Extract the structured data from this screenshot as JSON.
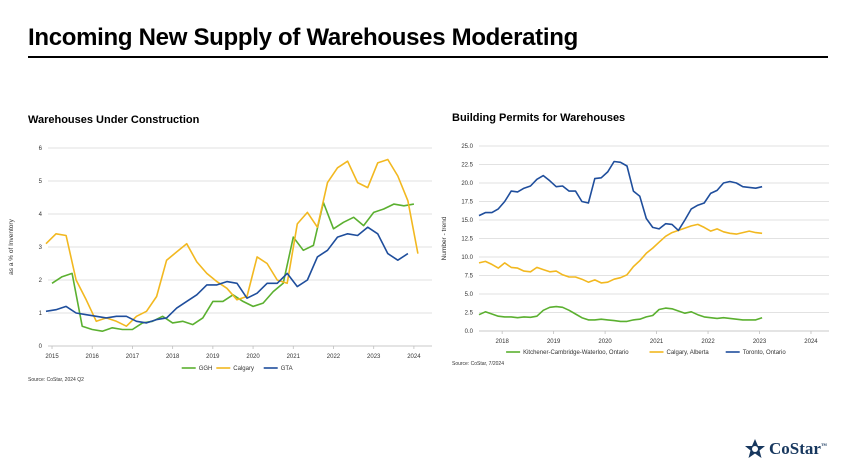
{
  "title": "Incoming New Supply of Warehouses Moderating",
  "colors": {
    "green": "#5bb030",
    "yellow": "#f2b820",
    "blue": "#1f4e9c",
    "grid": "#d9d9d9",
    "brand": "#17375e"
  },
  "logo": {
    "text": "CoStar",
    "tm": "™"
  },
  "chart_data": [
    {
      "type": "line",
      "title": "Warehouses Under Construction",
      "ylabel": "as a % of Inventory",
      "xlabel": "",
      "ylim": [
        0,
        6
      ],
      "yticks": [
        "0",
        "1",
        "2",
        "3",
        "4",
        "5",
        "6"
      ],
      "xlim": [
        2014.9,
        2024.45
      ],
      "xticks": [
        {
          "label": "2015",
          "x": 2015
        },
        {
          "label": "2016",
          "x": 2016
        },
        {
          "label": "2017",
          "x": 2017
        },
        {
          "label": "2018",
          "x": 2018
        },
        {
          "label": "2019",
          "x": 2019
        },
        {
          "label": "2020",
          "x": 2020
        },
        {
          "label": "2021",
          "x": 2021
        },
        {
          "label": "2022",
          "x": 2022
        },
        {
          "label": "2023",
          "x": 2023
        },
        {
          "label": "2024",
          "x": 2024
        }
      ],
      "grid": "horizontal",
      "legend": "bottom",
      "source": "Source: CoStar, 2024 Q2",
      "series": [
        {
          "name": "GGH",
          "color": "#5bb030",
          "x_start": 2015,
          "step": 0.25,
          "values": [
            1.9,
            2.1,
            2.2,
            0.6,
            0.5,
            0.45,
            0.55,
            0.5,
            0.5,
            0.7,
            0.75,
            0.9,
            0.7,
            0.75,
            0.65,
            0.85,
            1.35,
            1.35,
            1.55,
            1.35,
            1.2,
            1.3,
            1.65,
            1.9,
            3.3,
            2.9,
            3.05,
            4.35,
            3.55,
            3.75,
            3.9,
            3.65,
            4.05,
            4.15,
            4.3,
            4.25,
            4.3
          ]
        },
        {
          "name": "Calgary",
          "color": "#f2b820",
          "x_start": 2014.85,
          "step": 0.25,
          "values": [
            3.1,
            3.4,
            3.35,
            2.0,
            1.4,
            0.75,
            0.85,
            0.75,
            0.6,
            0.9,
            1.05,
            1.5,
            2.6,
            2.85,
            3.1,
            2.55,
            2.2,
            1.95,
            1.75,
            1.4,
            1.5,
            2.7,
            2.5,
            2.0,
            1.9,
            3.7,
            4.05,
            3.6,
            4.95,
            5.4,
            5.6,
            4.95,
            4.8,
            5.55,
            5.65,
            5.15,
            4.4,
            2.8
          ]
        },
        {
          "name": "GTA",
          "color": "#1f4e9c",
          "x_start": 2014.85,
          "step": 0.25,
          "values": [
            1.05,
            1.1,
            1.2,
            1.0,
            0.95,
            0.9,
            0.85,
            0.9,
            0.9,
            0.75,
            0.7,
            0.8,
            0.85,
            1.15,
            1.35,
            1.55,
            1.85,
            1.85,
            1.95,
            1.9,
            1.45,
            1.6,
            1.9,
            1.9,
            2.2,
            1.8,
            2.0,
            2.7,
            2.9,
            3.3,
            3.4,
            3.35,
            3.6,
            3.4,
            2.8,
            2.6,
            2.8
          ]
        }
      ]
    },
    {
      "type": "line",
      "title": "Building Permits for Warehouses",
      "ylabel": "Number - trend",
      "xlabel": "",
      "ylim": [
        0,
        25
      ],
      "yticks": [
        "0.0",
        "2.5",
        "5.0",
        "7.5",
        "10.0",
        "12.5",
        "15.0",
        "17.5",
        "20.0",
        "22.5",
        "25.0"
      ],
      "xlim": [
        2017.55,
        2024.35
      ],
      "xticks": [
        {
          "label": "2018",
          "x": 2018
        },
        {
          "label": "2019",
          "x": 2019
        },
        {
          "label": "2020",
          "x": 2020
        },
        {
          "label": "2021",
          "x": 2021
        },
        {
          "label": "2022",
          "x": 2022
        },
        {
          "label": "2023",
          "x": 2023
        },
        {
          "label": "2024",
          "x": 2024
        }
      ],
      "grid": "horizontal",
      "legend": "bottom",
      "source": "Source: CoStar, 7/2024",
      "series": [
        {
          "name": "Kitchener-Cambridge-Waterloo, Ontario",
          "color": "#5bb030",
          "x_start": 2017.55,
          "step": 0.125,
          "values": [
            2.2,
            2.6,
            2.3,
            2.0,
            1.9,
            1.9,
            1.8,
            1.9,
            1.85,
            2.0,
            2.8,
            3.2,
            3.3,
            3.2,
            2.8,
            2.3,
            1.8,
            1.5,
            1.5,
            1.6,
            1.5,
            1.4,
            1.3,
            1.3,
            1.5,
            1.6,
            1.9,
            2.1,
            2.9,
            3.1,
            3.0,
            2.7,
            2.4,
            2.6,
            2.2,
            1.9,
            1.8,
            1.7,
            1.8,
            1.7,
            1.6,
            1.5,
            1.5,
            1.5,
            1.8
          ]
        },
        {
          "name": "Calgary, Alberta",
          "color": "#f2b820",
          "x_start": 2017.55,
          "step": 0.125,
          "values": [
            9.2,
            9.4,
            9.0,
            8.5,
            9.2,
            8.6,
            8.5,
            8.1,
            8.0,
            8.6,
            8.3,
            8.0,
            8.1,
            7.6,
            7.3,
            7.3,
            7.0,
            6.6,
            6.9,
            6.5,
            6.6,
            7.0,
            7.2,
            7.6,
            8.7,
            9.5,
            10.5,
            11.2,
            12.0,
            12.8,
            13.3,
            13.6,
            13.9,
            14.2,
            14.4,
            14.0,
            13.5,
            13.8,
            13.4,
            13.2,
            13.1,
            13.3,
            13.5,
            13.3,
            13.2
          ]
        },
        {
          "name": "Toronto, Ontario",
          "color": "#1f4e9c",
          "x_start": 2017.55,
          "step": 0.125,
          "values": [
            15.6,
            16.0,
            16.0,
            16.5,
            17.5,
            18.9,
            18.8,
            19.3,
            19.6,
            20.5,
            21.0,
            20.3,
            19.5,
            19.6,
            18.9,
            18.9,
            17.5,
            17.3,
            20.6,
            20.7,
            21.5,
            22.9,
            22.8,
            22.3,
            18.9,
            18.2,
            15.2,
            14.0,
            13.8,
            14.5,
            14.4,
            13.6,
            15.0,
            16.5,
            17.0,
            17.3,
            18.6,
            19.0,
            20.0,
            20.2,
            20.0,
            19.5,
            19.4,
            19.3,
            19.5
          ]
        }
      ]
    }
  ]
}
